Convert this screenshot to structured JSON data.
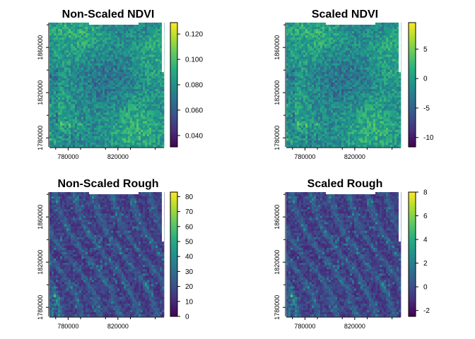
{
  "chart_data": [
    {
      "type": "heatmap",
      "title": "Non-Scaled NDVI",
      "x_ticks": [
        "780000",
        "820000"
      ],
      "x_tick_values": [
        780000,
        820000
      ],
      "y_ticks": [
        "1780000",
        "1820000",
        "1860000"
      ],
      "y_tick_values": [
        1780000,
        1820000,
        1860000
      ],
      "xlim": [
        765000,
        857000
      ],
      "ylim": [
        1772000,
        1882000
      ],
      "colorbar": {
        "min": 0.031,
        "max": 0.129,
        "ticks": [
          "0.040",
          "0.060",
          "0.080",
          "0.100",
          "0.120"
        ],
        "tick_values": [
          0.04,
          0.06,
          0.08,
          0.1,
          0.12
        ]
      },
      "pattern": "ndvi",
      "colormap": "viridis"
    },
    {
      "type": "heatmap",
      "title": "Scaled NDVI",
      "x_ticks": [
        "780000",
        "820000"
      ],
      "x_tick_values": [
        780000,
        820000
      ],
      "y_ticks": [
        "1780000",
        "1820000",
        "1860000"
      ],
      "y_tick_values": [
        1780000,
        1820000,
        1860000
      ],
      "xlim": [
        765000,
        857000
      ],
      "ylim": [
        1772000,
        1882000
      ],
      "colorbar": {
        "min": -11.6,
        "max": 9.5,
        "ticks": [
          "-10",
          "-5",
          "0",
          "5"
        ],
        "tick_values": [
          -10,
          -5,
          0,
          5
        ]
      },
      "pattern": "ndvi",
      "colormap": "viridis"
    },
    {
      "type": "heatmap",
      "title": "Non-Scaled Rough",
      "x_ticks": [
        "780000",
        "820000"
      ],
      "x_tick_values": [
        780000,
        820000
      ],
      "y_ticks": [
        "1780000",
        "1820000",
        "1860000"
      ],
      "y_tick_values": [
        1780000,
        1820000,
        1860000
      ],
      "xlim": [
        765000,
        857000
      ],
      "ylim": [
        1772000,
        1882000
      ],
      "colorbar": {
        "min": 0,
        "max": 83,
        "ticks": [
          "0",
          "10",
          "20",
          "30",
          "40",
          "50",
          "60",
          "70",
          "80"
        ],
        "tick_values": [
          0,
          10,
          20,
          30,
          40,
          50,
          60,
          70,
          80
        ]
      },
      "pattern": "rough",
      "colormap": "viridis"
    },
    {
      "type": "heatmap",
      "title": "Scaled Rough",
      "x_ticks": [
        "780000",
        "820000"
      ],
      "x_tick_values": [
        780000,
        820000
      ],
      "y_ticks": [
        "1780000",
        "1820000",
        "1860000"
      ],
      "y_tick_values": [
        1780000,
        1820000,
        1860000
      ],
      "xlim": [
        765000,
        857000
      ],
      "ylim": [
        1772000,
        1882000
      ],
      "colorbar": {
        "min": -2.5,
        "max": 8,
        "ticks": [
          "-2",
          "0",
          "2",
          "4",
          "6",
          "8"
        ],
        "tick_values": [
          -2,
          0,
          2,
          4,
          6,
          8
        ]
      },
      "pattern": "rough",
      "colormap": "viridis"
    }
  ]
}
